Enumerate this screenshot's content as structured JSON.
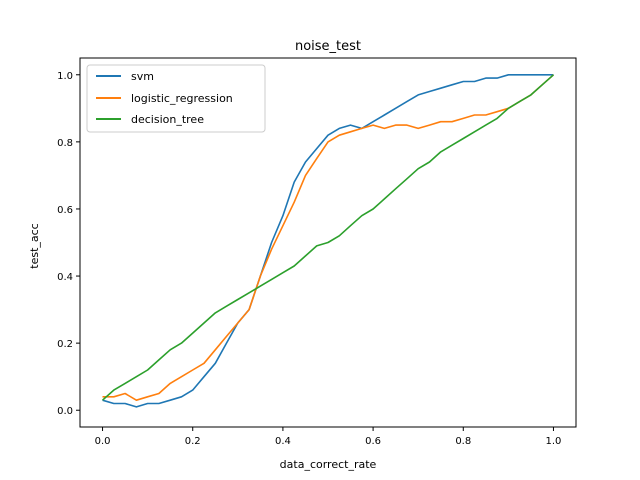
{
  "chart_data": {
    "type": "line",
    "title": "noise_test",
    "xlabel": "data_correct_rate",
    "ylabel": "test_acc",
    "xlim": [
      -0.05,
      1.05
    ],
    "ylim": [
      -0.05,
      1.05
    ],
    "xticks": [
      0.0,
      0.2,
      0.4,
      0.6,
      0.8,
      1.0
    ],
    "xtick_labels": [
      "0.0",
      "0.2",
      "0.4",
      "0.6",
      "0.8",
      "1.0"
    ],
    "yticks": [
      0.0,
      0.2,
      0.4,
      0.6,
      0.8,
      1.0
    ],
    "ytick_labels": [
      "0.0",
      "0.2",
      "0.4",
      "0.6",
      "0.8",
      "1.0"
    ],
    "grid": false,
    "legend_position": "upper-left",
    "series": [
      {
        "name": "svm",
        "color": "#1f77b4",
        "x": [
          0.0,
          0.025,
          0.05,
          0.075,
          0.1,
          0.125,
          0.15,
          0.175,
          0.2,
          0.225,
          0.25,
          0.275,
          0.3,
          0.325,
          0.35,
          0.375,
          0.4,
          0.425,
          0.45,
          0.475,
          0.5,
          0.525,
          0.55,
          0.575,
          0.6,
          0.625,
          0.65,
          0.675,
          0.7,
          0.725,
          0.75,
          0.775,
          0.8,
          0.825,
          0.85,
          0.875,
          0.9,
          0.925,
          0.95,
          0.975,
          1.0
        ],
        "y": [
          0.03,
          0.02,
          0.02,
          0.01,
          0.02,
          0.02,
          0.03,
          0.04,
          0.06,
          0.1,
          0.14,
          0.2,
          0.26,
          0.3,
          0.4,
          0.5,
          0.58,
          0.68,
          0.74,
          0.78,
          0.82,
          0.84,
          0.85,
          0.84,
          0.86,
          0.88,
          0.9,
          0.92,
          0.94,
          0.95,
          0.96,
          0.97,
          0.98,
          0.98,
          0.99,
          0.99,
          1.0,
          1.0,
          1.0,
          1.0,
          1.0
        ]
      },
      {
        "name": "logistic_regression",
        "color": "#ff7f0e",
        "x": [
          0.0,
          0.025,
          0.05,
          0.075,
          0.1,
          0.125,
          0.15,
          0.175,
          0.2,
          0.225,
          0.25,
          0.275,
          0.3,
          0.325,
          0.35,
          0.375,
          0.4,
          0.425,
          0.45,
          0.475,
          0.5,
          0.525,
          0.55,
          0.575,
          0.6,
          0.625,
          0.65,
          0.675,
          0.7,
          0.725,
          0.75,
          0.775,
          0.8,
          0.825,
          0.85,
          0.875,
          0.9,
          0.925,
          0.95,
          0.975,
          1.0
        ],
        "y": [
          0.04,
          0.04,
          0.05,
          0.03,
          0.04,
          0.05,
          0.08,
          0.1,
          0.12,
          0.14,
          0.18,
          0.22,
          0.26,
          0.3,
          0.4,
          0.48,
          0.55,
          0.62,
          0.7,
          0.75,
          0.8,
          0.82,
          0.83,
          0.84,
          0.85,
          0.84,
          0.85,
          0.85,
          0.84,
          0.85,
          0.86,
          0.86,
          0.87,
          0.88,
          0.88,
          0.89,
          0.9,
          0.92,
          0.94,
          0.97,
          1.0
        ]
      },
      {
        "name": "decision_tree",
        "color": "#2ca02c",
        "x": [
          0.0,
          0.025,
          0.05,
          0.075,
          0.1,
          0.125,
          0.15,
          0.175,
          0.2,
          0.225,
          0.25,
          0.275,
          0.3,
          0.325,
          0.35,
          0.375,
          0.4,
          0.425,
          0.45,
          0.475,
          0.5,
          0.525,
          0.55,
          0.575,
          0.6,
          0.625,
          0.65,
          0.675,
          0.7,
          0.725,
          0.75,
          0.775,
          0.8,
          0.825,
          0.85,
          0.875,
          0.9,
          0.925,
          0.95,
          0.975,
          1.0
        ],
        "y": [
          0.03,
          0.06,
          0.08,
          0.1,
          0.12,
          0.15,
          0.18,
          0.2,
          0.23,
          0.26,
          0.29,
          0.31,
          0.33,
          0.35,
          0.37,
          0.39,
          0.41,
          0.43,
          0.46,
          0.49,
          0.5,
          0.52,
          0.55,
          0.58,
          0.6,
          0.63,
          0.66,
          0.69,
          0.72,
          0.74,
          0.77,
          0.79,
          0.81,
          0.83,
          0.85,
          0.87,
          0.9,
          0.92,
          0.94,
          0.97,
          1.0
        ]
      }
    ]
  }
}
